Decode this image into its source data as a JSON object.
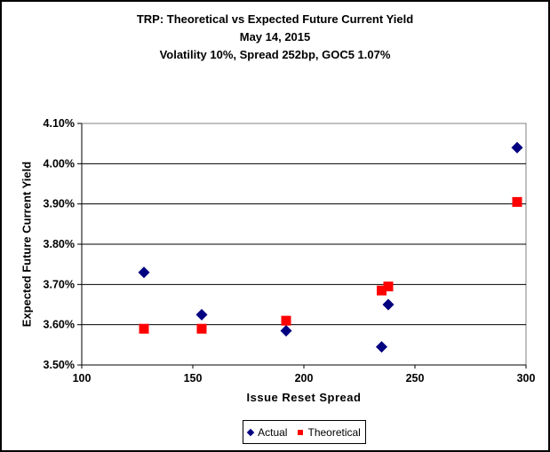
{
  "chart_data": {
    "type": "scatter",
    "title": "TRP: Theoretical vs Expected Future Current Yield",
    "subtitle_lines": [
      "May 14, 2015",
      "Volatility 10%, Spread 252bp, GOC5 1.07%"
    ],
    "xlabel": "Issue Reset Spread",
    "ylabel": "Expected Future Current Yield",
    "xlim": [
      100,
      300
    ],
    "ylim": [
      3.5,
      4.1
    ],
    "xticks": [
      100,
      150,
      200,
      250,
      300
    ],
    "yticks": [
      3.5,
      3.6,
      3.7,
      3.8,
      3.9,
      4.0,
      4.1
    ],
    "ytick_format": "percent-2dp",
    "grid": "horizontal",
    "gridline_color": "#000000",
    "plot_border_color": "#808080",
    "axis_color": "#000000",
    "legend_position": "bottom-center",
    "series": [
      {
        "name": "Actual",
        "marker": "diamond",
        "color": "#000080",
        "points": [
          [
            128,
            3.73
          ],
          [
            154,
            3.625
          ],
          [
            192,
            3.585
          ],
          [
            235,
            3.545
          ],
          [
            238,
            3.65
          ],
          [
            296,
            4.04
          ]
        ]
      },
      {
        "name": "Theoretical",
        "marker": "square",
        "color": "#FF0000",
        "points": [
          [
            128,
            3.59
          ],
          [
            154,
            3.59
          ],
          [
            192,
            3.61
          ],
          [
            235,
            3.685
          ],
          [
            238,
            3.695
          ],
          [
            296,
            3.905
          ]
        ]
      }
    ]
  }
}
